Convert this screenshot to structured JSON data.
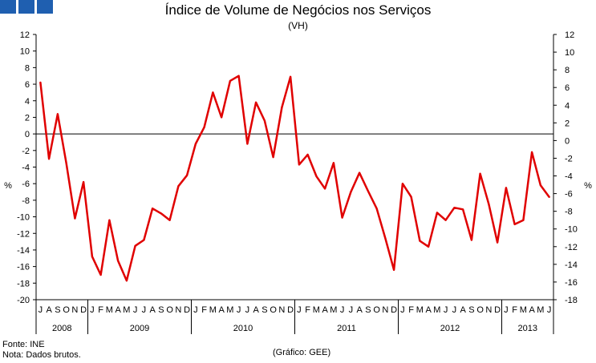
{
  "logo": {
    "color": "#1f5fb0",
    "squares": 3
  },
  "title": "Índice de Volume de Negócios nos Serviços",
  "subtitle": "(VH)",
  "footer": {
    "source": "Fonte: INE",
    "note": "Nota: Dados brutos.",
    "credit": "(Gráfico: GEE)"
  },
  "chart_data": {
    "type": "line",
    "title": "Índice de Volume de Negócios nos Serviços",
    "subtitle": "(VH)",
    "ylabel": "%",
    "ylim": [
      -20,
      12
    ],
    "ylim_right": [
      -18,
      12
    ],
    "yticks_left": [
      12,
      10,
      8,
      6,
      4,
      2,
      0,
      -2,
      -4,
      -6,
      -8,
      -10,
      -12,
      -14,
      -16,
      -18,
      -20
    ],
    "yticks_right": [
      12,
      10,
      8,
      6,
      4,
      2,
      0,
      -2,
      -4,
      -6,
      -8,
      -10,
      -12,
      -14,
      -16,
      -18
    ],
    "grid": false,
    "color": "#e00000",
    "month_labels": [
      "J",
      "A",
      "S",
      "O",
      "N",
      "D",
      "J",
      "F",
      "M",
      "A",
      "M",
      "J",
      "J",
      "A",
      "S",
      "O",
      "N",
      "D",
      "J",
      "F",
      "M",
      "A",
      "M",
      "J",
      "J",
      "A",
      "S",
      "O",
      "N",
      "D",
      "J",
      "F",
      "M",
      "A",
      "M",
      "J",
      "J",
      "A",
      "S",
      "O",
      "N",
      "D",
      "J",
      "F",
      "M",
      "A",
      "M",
      "J",
      "J",
      "A",
      "S",
      "O",
      "N",
      "D",
      "J",
      "F",
      "M",
      "A",
      "M",
      "J"
    ],
    "years": [
      {
        "label": "2008",
        "months": 6
      },
      {
        "label": "2009",
        "months": 12
      },
      {
        "label": "2010",
        "months": 12
      },
      {
        "label": "2011",
        "months": 12
      },
      {
        "label": "2012",
        "months": 12
      },
      {
        "label": "2013",
        "months": 6
      }
    ],
    "series": [
      {
        "name": "VH",
        "values": [
          6.2,
          -3.0,
          2.4,
          -3.5,
          -10.2,
          -5.8,
          -14.8,
          -17.0,
          -10.4,
          -15.3,
          -17.7,
          -13.5,
          -12.8,
          -9.0,
          -9.6,
          -10.4,
          -6.3,
          -5.0,
          -1.2,
          0.8,
          5.0,
          2.0,
          6.4,
          7.0,
          -1.2,
          3.8,
          1.6,
          -2.8,
          3.2,
          6.9,
          -3.7,
          -2.5,
          -5.1,
          -6.6,
          -3.5,
          -10.1,
          -7.0,
          -4.7,
          -6.9,
          -9.0,
          -12.6,
          -16.4,
          -6.0,
          -7.6,
          -12.9,
          -13.6,
          -9.5,
          -10.4,
          -8.9,
          -9.1,
          -12.8,
          -4.8,
          -8.5,
          -13.1,
          -6.5,
          -10.9,
          -10.4,
          -2.2,
          -6.2,
          -7.6
        ]
      }
    ]
  }
}
